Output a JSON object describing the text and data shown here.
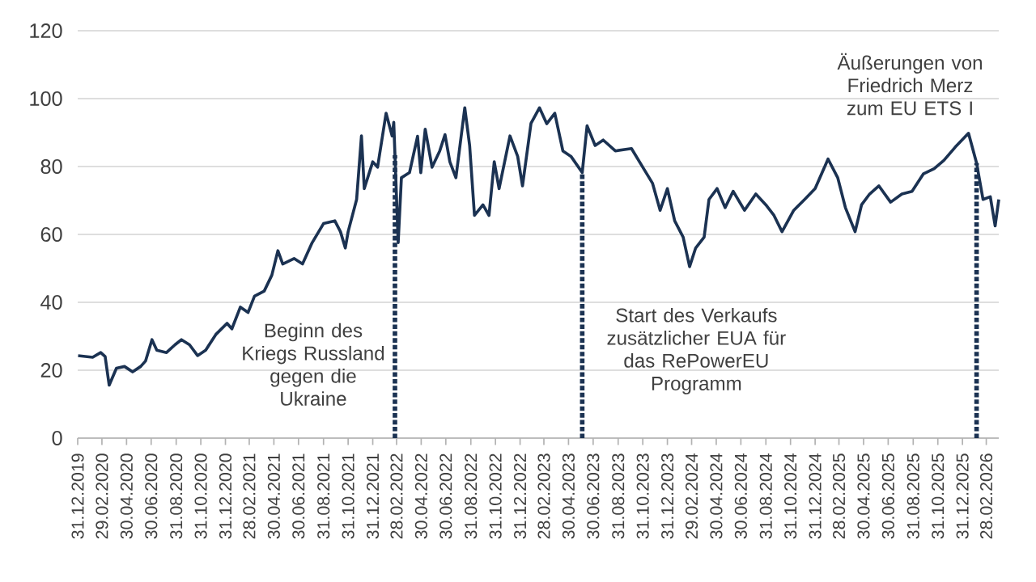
{
  "chart_data": {
    "type": "line",
    "color": "#1b3252",
    "line_style": "solid",
    "grid": "y",
    "x": [
      "2020-01-01",
      "2020-02-06",
      "2020-02-26",
      "2020-03-08",
      "2020-03-18",
      "2020-04-05",
      "2020-04-25",
      "2020-05-15",
      "2020-06-04",
      "2020-06-16",
      "2020-07-02",
      "2020-07-14",
      "2020-08-07",
      "2020-08-28",
      "2020-09-13",
      "2020-10-03",
      "2020-10-23",
      "2020-11-12",
      "2020-12-07",
      "2021-01-04",
      "2021-01-16",
      "2021-02-06",
      "2021-02-25",
      "2021-03-13",
      "2021-04-06",
      "2021-04-25",
      "2021-05-10",
      "2021-05-22",
      "2021-06-19",
      "2021-07-10",
      "2021-08-03",
      "2021-08-31",
      "2021-09-28",
      "2021-10-12",
      "2021-10-24",
      "2021-10-31",
      "2021-11-21",
      "2021-12-03",
      "2021-12-10",
      "2021-12-31",
      "2022-01-12",
      "2022-02-02",
      "2022-02-17",
      "2022-02-21",
      "2022-03-04",
      "2022-03-12",
      "2022-04-01",
      "2022-04-21",
      "2022-04-29",
      "2022-05-10",
      "2022-05-27",
      "2022-06-15",
      "2022-06-28",
      "2022-07-10",
      "2022-07-25",
      "2022-08-16",
      "2022-08-28",
      "2022-09-09",
      "2022-09-30",
      "2022-10-15",
      "2022-10-28",
      "2022-11-09",
      "2022-12-06",
      "2022-12-25",
      "2023-01-06",
      "2023-01-27",
      "2023-02-17",
      "2023-03-07",
      "2023-03-27",
      "2023-04-16",
      "2023-05-06",
      "2023-06-03",
      "2023-06-15",
      "2023-07-05",
      "2023-07-25",
      "2023-08-24",
      "2023-10-03",
      "2023-10-31",
      "2023-11-24",
      "2023-12-13",
      "2023-12-31",
      "2024-01-18",
      "2024-02-08",
      "2024-02-24",
      "2024-03-10",
      "2024-03-31",
      "2024-04-12",
      "2024-05-02",
      "2024-05-22",
      "2024-06-11",
      "2024-07-09",
      "2024-08-06",
      "2024-08-31",
      "2024-09-20",
      "2024-10-10",
      "2024-11-08",
      "2024-12-05",
      "2024-12-31",
      "2025-02-01",
      "2025-02-25",
      "2025-03-16",
      "2025-04-09",
      "2025-04-25",
      "2025-05-15",
      "2025-06-07",
      "2025-07-06",
      "2025-08-03",
      "2025-08-28",
      "2025-09-25",
      "2025-10-22",
      "2025-11-15",
      "2025-12-13",
      "2026-01-15",
      "2026-02-04",
      "2026-02-20",
      "2026-03-10",
      "2026-03-22",
      "2026-03-31"
    ],
    "values": [
      24.3,
      23.8,
      25.2,
      24,
      15.6,
      20.6,
      21.1,
      19.5,
      21.1,
      22.7,
      29,
      25.9,
      25.2,
      27.5,
      29,
      27.5,
      24.3,
      25.9,
      30.5,
      33.8,
      32.2,
      38.6,
      37,
      41.8,
      43.3,
      48,
      55.2,
      51.3,
      52.9,
      51.3,
      57.6,
      63.2,
      64,
      60.8,
      56,
      60.8,
      70.3,
      89,
      73.5,
      81.4,
      79.8,
      95.7,
      89,
      93,
      57.6,
      76.7,
      78.2,
      88.9,
      78.2,
      91,
      79.8,
      84.6,
      89.4,
      81.4,
      76.7,
      97.3,
      86.2,
      65.6,
      68.7,
      65.6,
      81.4,
      73.5,
      89,
      83,
      74.3,
      92.7,
      97.3,
      92.6,
      95.7,
      84.6,
      83,
      78.2,
      92,
      86.2,
      87.8,
      84.6,
      85.3,
      79.8,
      75.1,
      67.1,
      73.5,
      64,
      59.2,
      50.5,
      56,
      59.2,
      70.3,
      73.5,
      67.9,
      72.7,
      67.1,
      71.9,
      68.7,
      65.6,
      60.8,
      67.1,
      70.3,
      73.5,
      82.2,
      76.7,
      67.9,
      60.8,
      68.7,
      71.9,
      74.3,
      69.5,
      71.9,
      72.7,
      77.8,
      79.4,
      81.8,
      85.7,
      89.8,
      81,
      70.3,
      71.1,
      62.5,
      70.3
    ],
    "xlim": [
      "2019-12-31",
      "2026-03-31"
    ],
    "xticks": [
      {
        "value": "2019-12-31",
        "label": "31.12.2019"
      },
      {
        "value": "2020-02-29",
        "label": "29.02.2020"
      },
      {
        "value": "2020-04-30",
        "label": "30.04.2020"
      },
      {
        "value": "2020-06-30",
        "label": "30.06.2020"
      },
      {
        "value": "2020-08-31",
        "label": "31.08.2020"
      },
      {
        "value": "2020-10-31",
        "label": "31.10.2020"
      },
      {
        "value": "2020-12-31",
        "label": "31.12.2020"
      },
      {
        "value": "2021-02-28",
        "label": "28.02.2021"
      },
      {
        "value": "2021-04-30",
        "label": "30.04.2021"
      },
      {
        "value": "2021-06-30",
        "label": "30.06.2021"
      },
      {
        "value": "2021-08-31",
        "label": "31.08.2021"
      },
      {
        "value": "2021-10-31",
        "label": "31.10.2021"
      },
      {
        "value": "2021-12-31",
        "label": "31.12.2021"
      },
      {
        "value": "2022-02-28",
        "label": "28.02.2022"
      },
      {
        "value": "2022-04-30",
        "label": "30.04.2022"
      },
      {
        "value": "2022-06-30",
        "label": "30.06.2022"
      },
      {
        "value": "2022-08-31",
        "label": "31.08.2022"
      },
      {
        "value": "2022-10-31",
        "label": "31.10.2022"
      },
      {
        "value": "2022-12-31",
        "label": "31.12.2022"
      },
      {
        "value": "2023-02-28",
        "label": "28.02.2023"
      },
      {
        "value": "2023-04-30",
        "label": "30.04.2023"
      },
      {
        "value": "2023-06-30",
        "label": "30.06.2023"
      },
      {
        "value": "2023-08-31",
        "label": "31.08.2023"
      },
      {
        "value": "2023-10-31",
        "label": "31.10.2023"
      },
      {
        "value": "2023-12-31",
        "label": "31.12.2023"
      },
      {
        "value": "2024-02-29",
        "label": "29.02.2024"
      },
      {
        "value": "2024-04-30",
        "label": "30.04.2024"
      },
      {
        "value": "2024-06-30",
        "label": "30.06.2024"
      },
      {
        "value": "2024-08-31",
        "label": "31.08.2024"
      },
      {
        "value": "2024-10-31",
        "label": "31.10.2024"
      },
      {
        "value": "2024-12-31",
        "label": "31.12.2024"
      },
      {
        "value": "2025-02-28",
        "label": "28.02.2025"
      },
      {
        "value": "2025-04-30",
        "label": "30.04.2025"
      },
      {
        "value": "2025-06-30",
        "label": "30.06.2025"
      },
      {
        "value": "2025-08-31",
        "label": "31.08.2025"
      },
      {
        "value": "2025-10-31",
        "label": "31.10.2025"
      },
      {
        "value": "2025-12-31",
        "label": "31.12.2025"
      },
      {
        "value": "2026-02-28",
        "label": "28.02.2026"
      }
    ],
    "ylim": [
      0,
      120
    ],
    "yticks": [
      0,
      20,
      40,
      60,
      80,
      100,
      120
    ],
    "ref_lines": [
      {
        "axis": "x",
        "value": "2022-02-24",
        "label": "Beginn des Kriegs Russland gegen die Ukraine",
        "line_style": "dotted"
      },
      {
        "axis": "x",
        "value": "2023-06-03",
        "label": "Start des Verkaufs zusätzlicher EUA für das RePowerEU Programm",
        "line_style": "dotted"
      },
      {
        "axis": "x",
        "value": "2026-02-04",
        "label": "Äußerungen von Friedrich Merz zum EU ETS I",
        "line_style": "dotted"
      }
    ]
  }
}
